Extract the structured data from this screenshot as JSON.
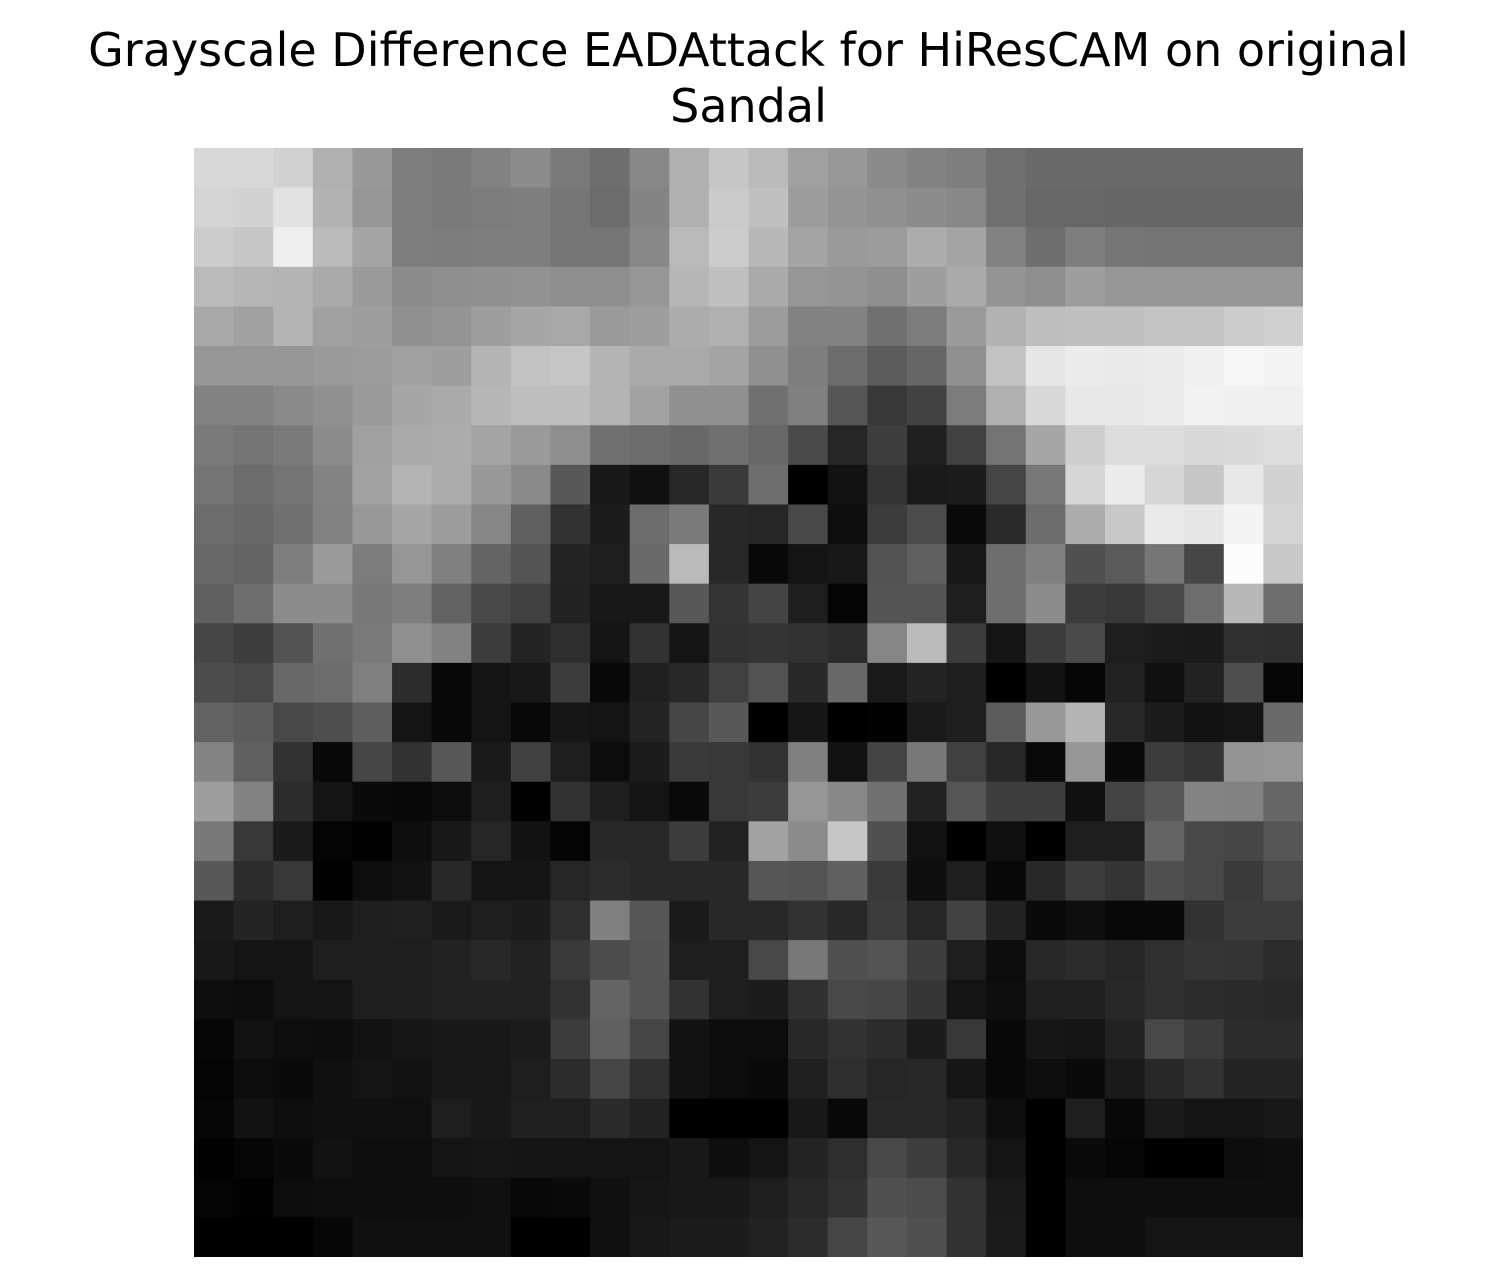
{
  "chart_data": {
    "type": "heatmap",
    "title_lines": [
      "Grayscale Difference EADAttack for HiResCAM on original",
      "Sandal"
    ],
    "colormap": "gray",
    "value_range": [
      0,
      255
    ],
    "axes_visible": false,
    "rows": 28,
    "cols": 28,
    "values": [
      [
        216,
        216,
        210,
        176,
        152,
        126,
        122,
        130,
        140,
        122,
        110,
        136,
        176,
        198,
        186,
        160,
        152,
        138,
        130,
        126,
        112,
        106,
        106,
        106,
        106,
        106,
        106,
        106
      ],
      [
        212,
        210,
        226,
        178,
        150,
        126,
        122,
        124,
        126,
        118,
        108,
        132,
        176,
        202,
        192,
        156,
        148,
        144,
        140,
        136,
        112,
        104,
        104,
        102,
        102,
        102,
        102,
        102
      ],
      [
        204,
        198,
        238,
        186,
        164,
        126,
        124,
        126,
        126,
        118,
        118,
        136,
        186,
        204,
        184,
        164,
        154,
        156,
        172,
        164,
        130,
        110,
        126,
        118,
        116,
        116,
        116,
        116
      ],
      [
        186,
        182,
        180,
        170,
        154,
        140,
        142,
        144,
        146,
        142,
        142,
        150,
        182,
        192,
        170,
        150,
        148,
        142,
        158,
        170,
        148,
        142,
        158,
        150,
        150,
        150,
        150,
        150
      ],
      [
        168,
        160,
        180,
        160,
        158,
        144,
        148,
        158,
        166,
        168,
        154,
        158,
        172,
        176,
        156,
        130,
        130,
        112,
        124,
        154,
        178,
        190,
        192,
        192,
        196,
        196,
        204,
        208
      ],
      [
        150,
        150,
        150,
        154,
        156,
        160,
        158,
        180,
        194,
        198,
        180,
        170,
        170,
        164,
        144,
        126,
        108,
        92,
        102,
        144,
        194,
        230,
        236,
        234,
        236,
        240,
        246,
        244
      ],
      [
        130,
        130,
        138,
        144,
        154,
        166,
        170,
        182,
        190,
        190,
        180,
        162,
        144,
        144,
        112,
        128,
        86,
        56,
        66,
        124,
        176,
        216,
        232,
        232,
        236,
        242,
        240,
        240
      ],
      [
        122,
        116,
        122,
        140,
        160,
        170,
        172,
        164,
        154,
        142,
        112,
        108,
        104,
        112,
        104,
        74,
        38,
        62,
        32,
        66,
        116,
        166,
        206,
        220,
        220,
        216,
        218,
        222
      ],
      [
        116,
        108,
        116,
        132,
        162,
        180,
        172,
        152,
        138,
        88,
        24,
        16,
        40,
        58,
        110,
        0,
        18,
        52,
        26,
        28,
        70,
        120,
        214,
        236,
        214,
        198,
        232,
        210
      ],
      [
        108,
        104,
        112,
        130,
        152,
        166,
        156,
        134,
        96,
        50,
        28,
        108,
        122,
        40,
        38,
        72,
        14,
        60,
        76,
        10,
        42,
        108,
        172,
        200,
        234,
        230,
        244,
        212
      ],
      [
        104,
        100,
        126,
        154,
        124,
        150,
        128,
        100,
        84,
        36,
        30,
        106,
        186,
        40,
        8,
        20,
        24,
        82,
        96,
        24,
        110,
        128,
        80,
        90,
        118,
        70,
        252,
        200
      ],
      [
        96,
        110,
        140,
        140,
        120,
        126,
        98,
        72,
        64,
        34,
        24,
        24,
        88,
        52,
        68,
        30,
        4,
        84,
        84,
        30,
        110,
        140,
        60,
        56,
        72,
        110,
        184,
        110
      ],
      [
        70,
        62,
        82,
        112,
        122,
        144,
        130,
        60,
        36,
        46,
        20,
        50,
        20,
        50,
        52,
        50,
        44,
        134,
        186,
        60,
        20,
        60,
        74,
        30,
        28,
        26,
        48,
        46
      ],
      [
        76,
        72,
        104,
        108,
        128,
        44,
        8,
        20,
        24,
        60,
        8,
        32,
        40,
        64,
        82,
        40,
        104,
        26,
        36,
        30,
        0,
        18,
        6,
        34,
        16,
        34,
        78,
        6
      ],
      [
        98,
        92,
        72,
        78,
        94,
        20,
        8,
        20,
        8,
        22,
        20,
        36,
        70,
        88,
        0,
        22,
        0,
        2,
        26,
        30,
        92,
        152,
        180,
        40,
        28,
        18,
        20,
        106
      ],
      [
        132,
        96,
        50,
        8,
        70,
        50,
        88,
        26,
        64,
        30,
        12,
        28,
        58,
        56,
        50,
        128,
        18,
        68,
        120,
        64,
        40,
        10,
        150,
        10,
        60,
        52,
        148,
        150
      ],
      [
        158,
        130,
        44,
        20,
        10,
        8,
        12,
        30,
        2,
        50,
        30,
        20,
        10,
        56,
        60,
        150,
        136,
        112,
        34,
        86,
        62,
        62,
        16,
        68,
        88,
        132,
        130,
        102
      ],
      [
        120,
        56,
        26,
        4,
        2,
        14,
        24,
        38,
        18,
        4,
        40,
        40,
        60,
        34,
        162,
        140,
        198,
        80,
        18,
        0,
        16,
        0,
        30,
        30,
        100,
        72,
        70,
        86
      ],
      [
        88,
        44,
        56,
        2,
        14,
        18,
        40,
        20,
        20,
        38,
        44,
        40,
        40,
        40,
        86,
        84,
        96,
        58,
        14,
        30,
        8,
        40,
        60,
        52,
        80,
        72,
        58,
        74
      ],
      [
        26,
        36,
        30,
        24,
        30,
        32,
        26,
        30,
        28,
        46,
        128,
        86,
        26,
        40,
        40,
        50,
        40,
        60,
        38,
        66,
        34,
        10,
        14,
        8,
        8,
        50,
        60,
        60
      ],
      [
        24,
        20,
        20,
        30,
        30,
        30,
        34,
        40,
        34,
        58,
        76,
        84,
        30,
        30,
        72,
        120,
        80,
        84,
        62,
        30,
        12,
        40,
        44,
        38,
        48,
        54,
        52,
        44
      ],
      [
        14,
        12,
        20,
        20,
        30,
        30,
        34,
        34,
        34,
        50,
        100,
        84,
        50,
        30,
        28,
        48,
        72,
        70,
        54,
        20,
        14,
        32,
        32,
        40,
        48,
        44,
        42,
        40
      ],
      [
        6,
        18,
        14,
        12,
        18,
        22,
        24,
        24,
        28,
        60,
        96,
        70,
        18,
        12,
        12,
        40,
        50,
        44,
        28,
        56,
        8,
        22,
        20,
        34,
        72,
        60,
        44,
        44
      ],
      [
        4,
        12,
        10,
        16,
        20,
        18,
        24,
        24,
        30,
        44,
        70,
        48,
        18,
        12,
        10,
        32,
        46,
        38,
        40,
        22,
        8,
        14,
        10,
        26,
        40,
        50,
        36,
        36
      ],
      [
        6,
        18,
        14,
        16,
        16,
        16,
        30,
        24,
        32,
        32,
        42,
        34,
        0,
        0,
        0,
        24,
        8,
        40,
        40,
        34,
        14,
        0,
        30,
        8,
        26,
        20,
        20,
        24
      ],
      [
        2,
        6,
        10,
        18,
        14,
        14,
        20,
        22,
        20,
        20,
        20,
        20,
        24,
        14,
        20,
        36,
        46,
        72,
        62,
        40,
        20,
        0,
        10,
        6,
        0,
        0,
        12,
        14
      ],
      [
        4,
        2,
        12,
        14,
        14,
        14,
        14,
        16,
        8,
        10,
        16,
        22,
        24,
        24,
        30,
        40,
        50,
        80,
        76,
        50,
        26,
        0,
        14,
        14,
        14,
        14,
        14,
        14
      ],
      [
        0,
        0,
        0,
        6,
        16,
        16,
        16,
        16,
        0,
        0,
        16,
        24,
        28,
        28,
        34,
        44,
        70,
        88,
        80,
        50,
        28,
        0,
        14,
        14,
        20,
        20,
        20,
        20
      ]
    ]
  }
}
